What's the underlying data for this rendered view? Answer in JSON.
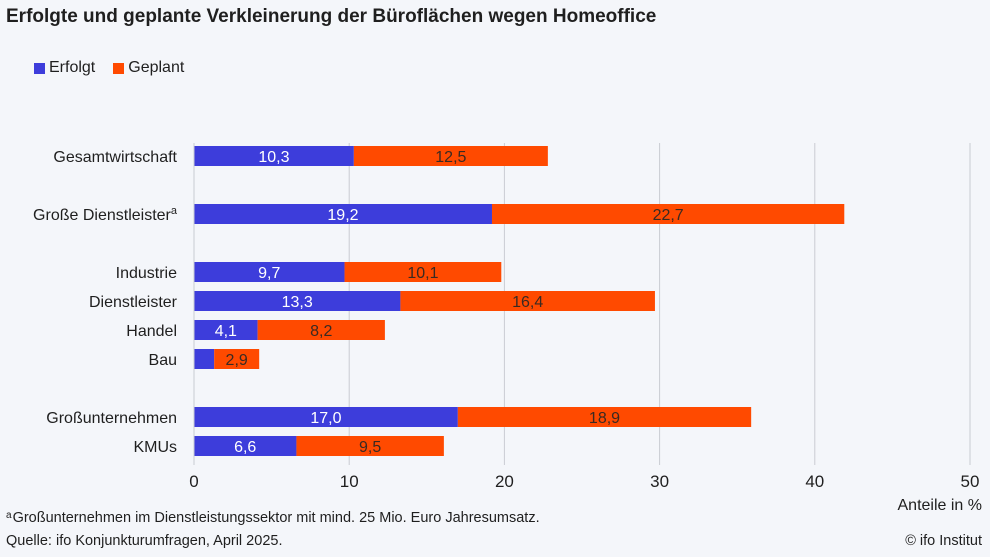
{
  "chart_data": {
    "type": "bar",
    "orientation": "horizontal",
    "stacked": true,
    "title": "Erfolgte und geplante Verkleinerung der Büroflächen wegen Homeoffice",
    "categories": [
      "Gesamtwirtschaft",
      "Große Dienstleister",
      "Industrie",
      "Dienstleister",
      "Handel",
      "Bau",
      "Großunternehmen",
      "KMUs"
    ],
    "category_superscripts": [
      "",
      "a",
      "",
      "",
      "",
      "",
      "",
      ""
    ],
    "series": [
      {
        "name": "Erfolgt",
        "color": "#3d3ddb",
        "values": [
          10.3,
          19.2,
          9.7,
          13.3,
          4.1,
          1.3,
          17.0,
          6.6
        ],
        "labels": [
          "10,3",
          "19,2",
          "9,7",
          "13,3",
          "4,1",
          "",
          "17,0",
          "6,6"
        ]
      },
      {
        "name": "Geplant",
        "color": "#ff4a00",
        "values": [
          12.5,
          22.7,
          10.1,
          16.4,
          8.2,
          2.9,
          18.9,
          9.5
        ],
        "labels": [
          "12,5",
          "22,7",
          "10,1",
          "16,4",
          "8,2",
          "2,9",
          "18,9",
          "9,5"
        ]
      }
    ],
    "xlim": [
      0,
      50
    ],
    "xticks": [
      0,
      10,
      20,
      30,
      40,
      50
    ],
    "xlabel": "Anteile in %",
    "grid": true,
    "legend": "top-left"
  },
  "footnote": {
    "marker": "a",
    "text": "Großunternehmen im Dienstleistungssektor mit mind. 25 Mio. Euro Jahresumsatz."
  },
  "source": "Quelle: ifo Konjunkturumfragen, April 2025.",
  "copyright": "© ifo Institut"
}
